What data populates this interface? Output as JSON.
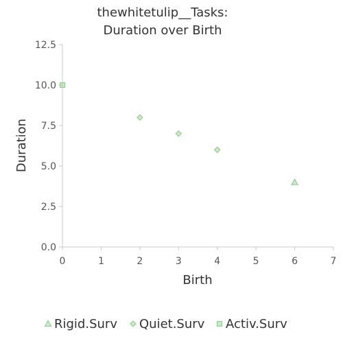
{
  "chart_data": {
    "type": "scatter",
    "title_lines": [
      "thewhitetulip__Tasks:",
      "Duration over Birth"
    ],
    "xlabel": "Birth",
    "ylabel": "Duration",
    "xlim": [
      0,
      7
    ],
    "ylim": [
      0,
      12.5
    ],
    "x_ticks": [
      "0",
      "1",
      "2",
      "3",
      "4",
      "5",
      "6",
      "7"
    ],
    "y_ticks": [
      "0.0",
      "2.5",
      "5.0",
      "7.5",
      "10.0",
      "12.5"
    ],
    "grid": false,
    "legend_position": "bottom",
    "series": [
      {
        "name": "Rigid.Surv",
        "marker": "triangle",
        "color": "#8fd18b",
        "points": [
          [
            6,
            4
          ]
        ]
      },
      {
        "name": "Quiet.Surv",
        "marker": "diamond",
        "color": "#8fd18b",
        "points": [
          [
            2,
            8
          ],
          [
            3,
            7
          ],
          [
            4,
            6
          ]
        ]
      },
      {
        "name": "Activ.Surv",
        "marker": "square",
        "color": "#8fd18b",
        "points": [
          [
            0,
            10
          ]
        ]
      }
    ]
  }
}
